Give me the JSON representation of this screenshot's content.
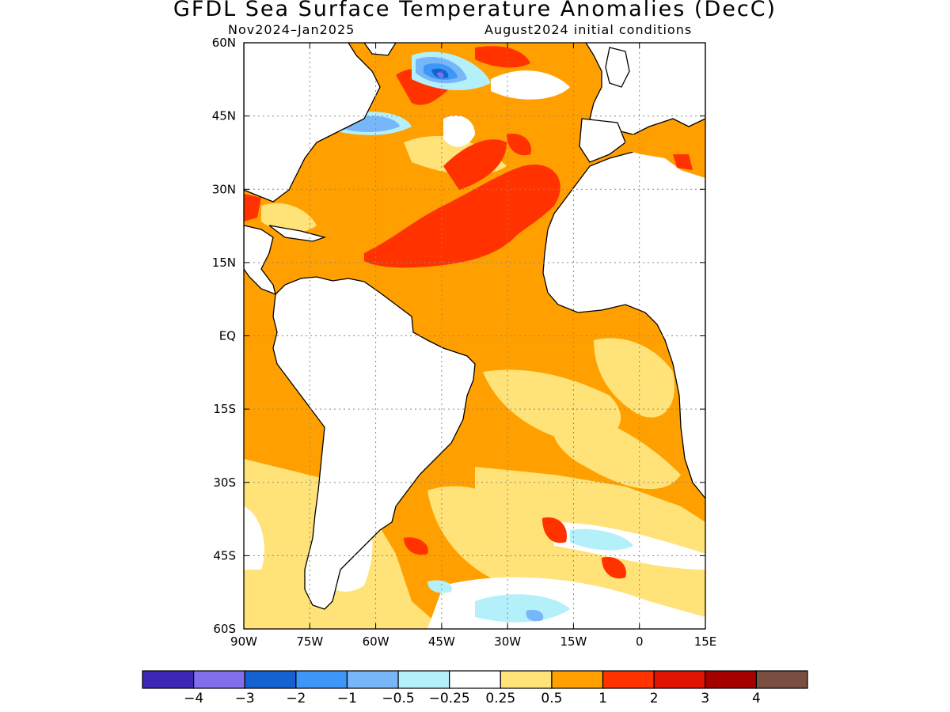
{
  "title": "GFDL Sea Surface Temperature Anomalies (DecC)",
  "subtitle_left": "Nov2024–Jan2025",
  "subtitle_right": "August2024 initial conditions",
  "map": {
    "lon_range": [
      -90,
      15
    ],
    "lat_range": [
      -60,
      60
    ],
    "lon_ticks": [
      {
        "value": -90,
        "label": "90W"
      },
      {
        "value": -75,
        "label": "75W"
      },
      {
        "value": -60,
        "label": "60W"
      },
      {
        "value": -45,
        "label": "45W"
      },
      {
        "value": -30,
        "label": "30W"
      },
      {
        "value": -15,
        "label": "15W"
      },
      {
        "value": 0,
        "label": "0"
      },
      {
        "value": 15,
        "label": "15E"
      }
    ],
    "lat_ticks": [
      {
        "value": 60,
        "label": "60N"
      },
      {
        "value": 45,
        "label": "45N"
      },
      {
        "value": 30,
        "label": "30N"
      },
      {
        "value": 15,
        "label": "15N"
      },
      {
        "value": 0,
        "label": "EQ"
      },
      {
        "value": -15,
        "label": "15S"
      },
      {
        "value": -30,
        "label": "30S"
      },
      {
        "value": -45,
        "label": "45S"
      },
      {
        "value": -60,
        "label": "60S"
      }
    ],
    "grid": true
  },
  "colorbar": {
    "colors": [
      "#3c27b6",
      "#8270ea",
      "#1462d2",
      "#3e96f6",
      "#78b6fa",
      "#b4f0fa",
      "#ffffff",
      "#ffe278",
      "#ffa000",
      "#ff3200",
      "#e01400",
      "#a50000",
      "#7a4e40"
    ],
    "labels": [
      "−4",
      "−3",
      "−2",
      "−1",
      "−0.5",
      "−0.25",
      "0.25",
      "0.5",
      "1",
      "2",
      "3",
      "4"
    ]
  },
  "anomaly_colors": {
    "warm_weak": "#ffe278",
    "warm_moderate": "#ffa000",
    "warm_strong": "#ff3200",
    "hot": "#e01400",
    "cool_weak": "#b4f0fa",
    "cool": "#78b6fa",
    "cool_moderate": "#3e96f6",
    "cold": "#1462d2",
    "very_cold": "#8270ea",
    "brown": "#7a4e40"
  }
}
